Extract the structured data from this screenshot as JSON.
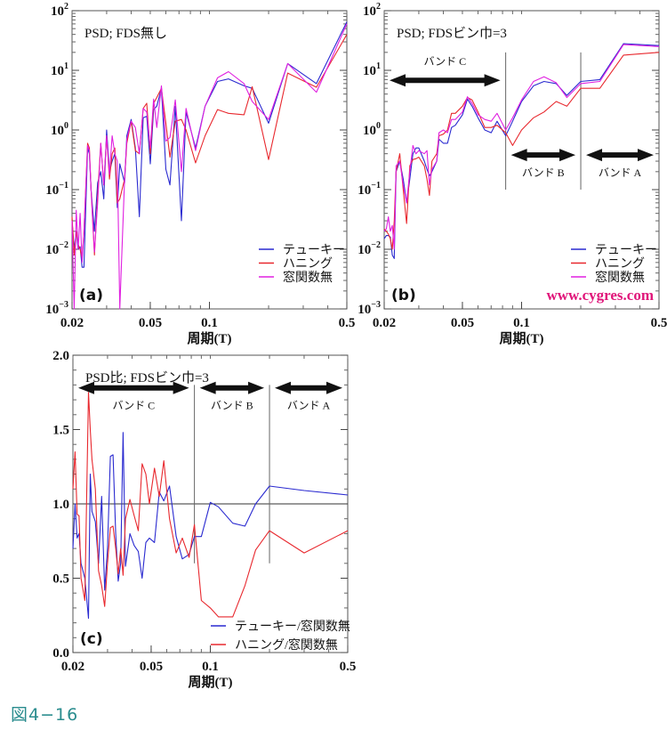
{
  "figure_caption": "図4−16",
  "colors": {
    "tukey": "#2a2ad0",
    "hanning": "#e8282e",
    "none": "#e020e0",
    "watermark": "#e0167a",
    "caption": "#2a8c8e"
  },
  "chart_data": [
    {
      "id": "a",
      "type": "line",
      "panel_label": "(a)",
      "title": "PSD; FDS無し",
      "xlabel": "周期(T)",
      "xscale": "log",
      "yscale": "log",
      "xlim": [
        0.02,
        0.5
      ],
      "ylim": [
        0.001,
        100
      ],
      "x_ticks": [
        "0.02",
        "0.05",
        "0.1",
        "0.5"
      ],
      "x_tick_values": [
        0.02,
        0.05,
        0.1,
        0.5
      ],
      "y_ticks": [
        {
          "base": "10",
          "exp": "2",
          "v": 100
        },
        {
          "base": "10",
          "exp": "1",
          "v": 10
        },
        {
          "base": "10",
          "exp": "0",
          "v": 1
        },
        {
          "base": "10",
          "exp": "−1",
          "v": 0.1
        },
        {
          "base": "10",
          "exp": "−2",
          "v": 0.01
        },
        {
          "base": "10",
          "exp": "−3",
          "v": 0.001
        }
      ],
      "x": [
        0.02,
        0.0205,
        0.021,
        0.0215,
        0.022,
        0.0225,
        0.023,
        0.024,
        0.0245,
        0.025,
        0.026,
        0.027,
        0.028,
        0.029,
        0.03,
        0.031,
        0.032,
        0.033,
        0.034,
        0.035,
        0.037,
        0.038,
        0.04,
        0.042,
        0.044,
        0.046,
        0.048,
        0.05,
        0.052,
        0.054,
        0.057,
        0.06,
        0.063,
        0.067,
        0.072,
        0.076,
        0.085,
        0.095,
        0.11,
        0.125,
        0.15,
        0.165,
        0.2,
        0.25,
        0.35,
        0.5
      ],
      "series": [
        {
          "name": "テューキー",
          "color_key": "tukey",
          "values": [
            0.03,
            0.01,
            0.02,
            0.01,
            0.011,
            0.005,
            0.005,
            0.5,
            0.4,
            0.1,
            0.02,
            0.13,
            0.2,
            0.07,
            1.0,
            0.2,
            0.3,
            0.4,
            0.05,
            0.27,
            0.13,
            0.8,
            1.5,
            0.5,
            0.035,
            1.6,
            1.7,
            0.27,
            2.2,
            2.5,
            5.0,
            0.22,
            0.12,
            2.5,
            0.03,
            2.0,
            0.5,
            2.5,
            6.5,
            7.2,
            5.5,
            5.0,
            1.3,
            13,
            6,
            65
          ]
        },
        {
          "name": "ハニング",
          "color_key": "hanning",
          "values": [
            0.035,
            0.008,
            0.02,
            0.012,
            0.01,
            0.007,
            0.02,
            0.6,
            0.5,
            0.1,
            0.008,
            0.08,
            0.6,
            0.12,
            0.8,
            0.15,
            0.4,
            0.5,
            0.06,
            0.07,
            0.15,
            0.6,
            1.4,
            0.45,
            0.4,
            2.3,
            2.8,
            0.4,
            2.8,
            3.5,
            5.0,
            1.3,
            0.35,
            1.4,
            1.5,
            1.0,
            0.28,
            0.8,
            2.2,
            1.9,
            1.8,
            5.3,
            0.32,
            9,
            5.2,
            40
          ]
        },
        {
          "name": "窓関数無",
          "color_key": "none",
          "values": [
            0.03,
            0.001,
            0.045,
            0.01,
            0.04,
            0.006,
            0.02,
            0.55,
            0.45,
            0.1,
            0.009,
            0.06,
            0.6,
            0.12,
            0.8,
            0.18,
            0.8,
            0.4,
            0.3,
            0.001,
            0.15,
            0.7,
            1.4,
            1.1,
            0.4,
            2.3,
            2.0,
            0.5,
            3.3,
            1.1,
            5.5,
            0.65,
            0.75,
            3.2,
            0.2,
            2.3,
            0.45,
            2.5,
            7.5,
            9.5,
            6,
            3,
            1.5,
            13,
            4.3,
            60
          ]
        }
      ],
      "legend_position": "bottom-right"
    },
    {
      "id": "b",
      "type": "line",
      "panel_label": "(b)",
      "title": "PSD; FDSビン巾=3",
      "xlabel": "周期(T)",
      "xscale": "log",
      "yscale": "log",
      "xlim": [
        0.02,
        0.5
      ],
      "ylim": [
        0.001,
        100
      ],
      "x_ticks": [
        "0.02",
        "0.05",
        "0.1",
        "0.5"
      ],
      "x_tick_values": [
        0.02,
        0.05,
        0.1,
        0.5
      ],
      "y_ticks": [
        {
          "base": "10",
          "exp": "2",
          "v": 100
        },
        {
          "base": "10",
          "exp": "1",
          "v": 10
        },
        {
          "base": "10",
          "exp": "0",
          "v": 1
        },
        {
          "base": "10",
          "exp": "−1",
          "v": 0.1
        },
        {
          "base": "10",
          "exp": "−2",
          "v": 0.01
        },
        {
          "base": "10",
          "exp": "−3",
          "v": 0.001
        }
      ],
      "x": [
        0.02,
        0.0205,
        0.021,
        0.0215,
        0.022,
        0.0225,
        0.023,
        0.024,
        0.025,
        0.026,
        0.027,
        0.028,
        0.029,
        0.03,
        0.032,
        0.033,
        0.034,
        0.035,
        0.037,
        0.038,
        0.04,
        0.042,
        0.044,
        0.046,
        0.05,
        0.053,
        0.056,
        0.06,
        0.065,
        0.07,
        0.075,
        0.083,
        0.09,
        0.1,
        0.115,
        0.13,
        0.15,
        0.17,
        0.2,
        0.25,
        0.33,
        0.5
      ],
      "series": [
        {
          "name": "テューキー",
          "color_key": "tukey",
          "values": [
            0.015,
            0.017,
            0.017,
            0.016,
            0.008,
            0.007,
            0.2,
            0.3,
            0.15,
            0.06,
            0.15,
            0.4,
            0.5,
            0.5,
            0.3,
            0.22,
            0.17,
            0.2,
            0.3,
            0.7,
            0.6,
            0.6,
            1.1,
            1.2,
            1.8,
            3.3,
            2.5,
            1.6,
            1.0,
            0.9,
            1.4,
            0.8,
            1.4,
            3.0,
            5.5,
            6.5,
            6.0,
            3.8,
            6.5,
            7,
            28,
            26
          ]
        },
        {
          "name": "ハニング",
          "color_key": "hanning",
          "values": [
            0.022,
            0.02,
            0.018,
            0.015,
            0.01,
            0.03,
            0.2,
            0.4,
            0.1,
            0.027,
            0.25,
            0.32,
            0.33,
            0.35,
            0.25,
            0.15,
            0.08,
            0.3,
            0.4,
            0.8,
            0.85,
            1.0,
            1.9,
            1.9,
            2.5,
            3.5,
            3.2,
            2.0,
            1.1,
            1.1,
            1.2,
            0.9,
            0.55,
            1.0,
            1.6,
            2.0,
            3.0,
            2.5,
            5.0,
            5.0,
            18,
            20
          ]
        },
        {
          "name": "窓関数無",
          "color_key": "none",
          "values": [
            0.02,
            0.022,
            0.035,
            0.02,
            0.025,
            0.01,
            0.25,
            0.3,
            0.12,
            0.06,
            0.2,
            0.55,
            0.4,
            0.45,
            0.4,
            0.45,
            0.12,
            0.22,
            0.3,
            0.9,
            1.0,
            0.9,
            1.5,
            1.5,
            2.0,
            3.6,
            2.8,
            1.8,
            1.5,
            1.4,
            1.9,
            1.0,
            1.6,
            3.2,
            6.5,
            7.8,
            6.2,
            3.5,
            6.0,
            6.5,
            27,
            25
          ]
        }
      ],
      "band_dividers": [
        0.083,
        0.2
      ],
      "divider_span": [
        0.1,
        20
      ],
      "bands": [
        {
          "label": "バンド C",
          "from": 0.02,
          "to": 0.083,
          "y": 6.8,
          "label_above": true
        },
        {
          "label": "バンド B",
          "from": 0.083,
          "to": 0.2,
          "y": 0.38,
          "label_above": false
        },
        {
          "label": "バンド A",
          "from": 0.2,
          "to": 0.5,
          "y": 0.38,
          "label_above": false
        }
      ],
      "watermark": "www.cygres.com",
      "legend_position": "bottom-right"
    },
    {
      "id": "c",
      "type": "line",
      "panel_label": "(c)",
      "title": "PSD比; FDSビン巾=3",
      "xlabel": "周期(T)",
      "xscale": "log",
      "yscale": "linear",
      "xlim": [
        0.02,
        0.5
      ],
      "ylim": [
        0,
        2
      ],
      "x_ticks": [
        "0.02",
        "0.05",
        "0.1",
        "0.5"
      ],
      "x_tick_values": [
        0.02,
        0.05,
        0.1,
        0.5
      ],
      "y_ticks": [
        {
          "base": "2.0",
          "v": 2
        },
        {
          "base": "1.5",
          "v": 1.5
        },
        {
          "base": "1.0",
          "v": 1
        },
        {
          "base": "0.5",
          "v": 0.5
        },
        {
          "base": "0.0",
          "v": 0
        }
      ],
      "reference_line": 1.0,
      "x": [
        0.02,
        0.0205,
        0.021,
        0.0215,
        0.022,
        0.023,
        0.024,
        0.0245,
        0.025,
        0.026,
        0.027,
        0.028,
        0.029,
        0.03,
        0.031,
        0.032,
        0.033,
        0.034,
        0.035,
        0.036,
        0.037,
        0.039,
        0.041,
        0.043,
        0.045,
        0.047,
        0.049,
        0.052,
        0.055,
        0.058,
        0.062,
        0.067,
        0.072,
        0.078,
        0.083,
        0.09,
        0.1,
        0.11,
        0.13,
        0.15,
        0.17,
        0.2,
        0.3,
        0.5
      ],
      "series": [
        {
          "name": "テューキー/窓関数無",
          "color_key": "tukey",
          "values": [
            0.7,
            1.0,
            0.77,
            0.8,
            0.6,
            0.5,
            0.23,
            1.2,
            0.95,
            0.88,
            0.6,
            1.05,
            0.42,
            0.7,
            1.32,
            1.33,
            0.8,
            0.48,
            0.6,
            1.48,
            0.58,
            0.8,
            0.72,
            0.68,
            0.5,
            0.74,
            0.77,
            0.74,
            1.08,
            1.02,
            1.12,
            0.78,
            0.63,
            0.66,
            0.78,
            0.78,
            1.01,
            0.98,
            0.87,
            0.85,
            1.0,
            1.12,
            1.09,
            1.06
          ]
        },
        {
          "name": "ハニング/窓関数無",
          "color_key": "hanning",
          "values": [
            1.1,
            1.35,
            0.93,
            0.92,
            0.5,
            0.35,
            1.75,
            1.5,
            1.3,
            1.1,
            0.55,
            0.45,
            0.31,
            0.6,
            0.84,
            0.85,
            0.7,
            0.53,
            0.7,
            0.52,
            0.9,
            1.03,
            0.92,
            0.82,
            1.27,
            1.2,
            1.0,
            1.24,
            1.05,
            1.29,
            0.9,
            0.67,
            0.77,
            0.64,
            0.86,
            0.35,
            0.3,
            0.24,
            0.24,
            0.45,
            0.69,
            0.82,
            0.67,
            0.82
          ]
        }
      ],
      "band_dividers": [
        0.083,
        0.2
      ],
      "divider_span": [
        0.6,
        1.8
      ],
      "bands": [
        {
          "label": "バンド C",
          "from": 0.02,
          "to": 0.083,
          "y": 1.78,
          "label_above": false
        },
        {
          "label": "バンド B",
          "from": 0.083,
          "to": 0.2,
          "y": 1.78,
          "label_above": false
        },
        {
          "label": "バンド A",
          "from": 0.2,
          "to": 0.5,
          "y": 1.78,
          "label_above": false
        }
      ],
      "legend_position": "bottom-right"
    }
  ]
}
